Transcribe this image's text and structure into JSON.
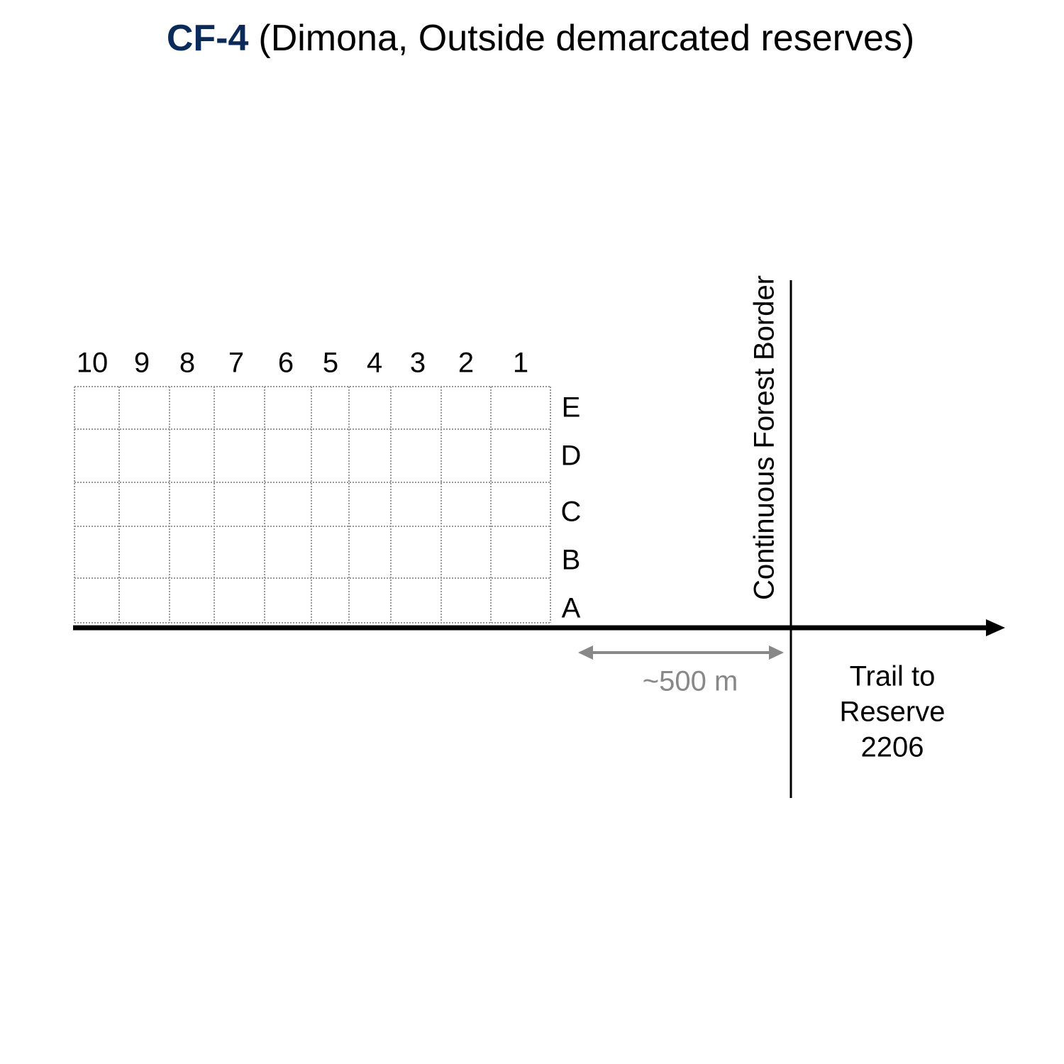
{
  "title": {
    "code": "CF-4",
    "description": "(Dimona, Outside demarcated reserves)"
  },
  "grid": {
    "columns": [
      "10",
      "9",
      "8",
      "7",
      "6",
      "5",
      "4",
      "3",
      "2",
      "1"
    ],
    "rows": [
      "E",
      "D",
      "C",
      "B",
      "A"
    ]
  },
  "border_label": "Continuous Forest Border",
  "distance_label": "~500 m",
  "trail_label": [
    "Trail to",
    "Reserve",
    "2206"
  ]
}
